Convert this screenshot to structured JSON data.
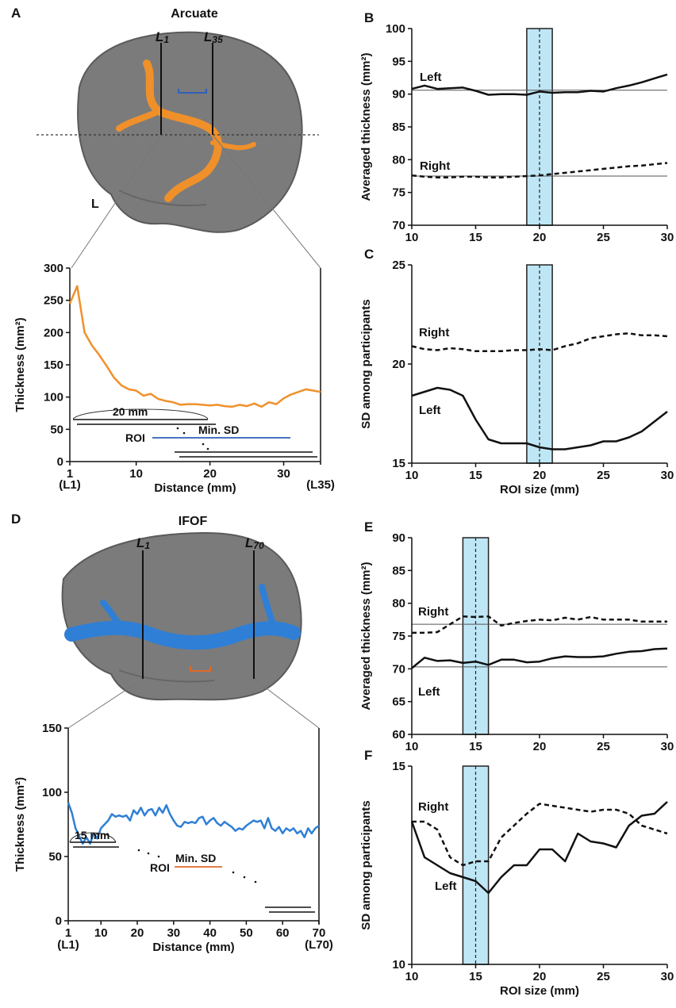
{
  "colors": {
    "arcuate": "#f0902a",
    "ifof": "#2f7fd6",
    "band": "#bfe6f5",
    "brain": "#7b7b7b",
    "roi_arcuate": "#2f5fb8",
    "roi_ifof": "#e0692a"
  },
  "panels": {
    "A": {
      "letter": "A",
      "title": "Arcuate",
      "line_left": "L",
      "line_left_sub": "1",
      "line_right": "L",
      "line_right_sub": "35",
      "hemisphere": "L"
    },
    "D": {
      "letter": "D",
      "title": "IFOF",
      "line_left": "L",
      "line_left_sub": "1",
      "line_right": "L",
      "line_right_sub": "70"
    }
  },
  "chart_data": [
    {
      "id": "A-profile",
      "type": "line",
      "ylabel": "Thickness (mm²)",
      "xlabel": "Distance (mm)",
      "xlim": [
        1,
        35
      ],
      "ylim": [
        0,
        300
      ],
      "xticks": [
        1,
        10,
        20,
        30
      ],
      "yticks": [
        0,
        50,
        100,
        150,
        200,
        250,
        300
      ],
      "x_end_left": "(L1)",
      "x_end_right": "(L35)",
      "x": [
        1,
        2,
        3,
        4,
        5,
        6,
        7,
        8,
        9,
        10,
        11,
        12,
        13,
        14,
        15,
        16,
        17,
        18,
        19,
        20,
        21,
        22,
        23,
        24,
        25,
        26,
        27,
        28,
        29,
        30,
        31,
        32,
        33,
        34,
        35
      ],
      "series": [
        {
          "values": [
            245,
            272,
            200,
            180,
            165,
            148,
            130,
            118,
            112,
            110,
            102,
            105,
            97,
            94,
            92,
            88,
            89,
            89,
            88,
            87,
            88,
            86,
            85,
            88,
            86,
            90,
            85,
            92,
            89,
            98,
            104,
            108,
            112,
            110,
            108
          ]
        }
      ],
      "annotations": {
        "window": "20 mm",
        "roi": "ROI",
        "min_sd": "Min. SD"
      }
    },
    {
      "id": "B",
      "letter": "B",
      "type": "line",
      "ylabel": "Averaged thickness (mm²)",
      "xlim": [
        10,
        30
      ],
      "ylim": [
        70,
        100
      ],
      "xticks": [
        10,
        15,
        20,
        25,
        30
      ],
      "yticks": [
        70,
        75,
        80,
        85,
        90,
        95,
        100
      ],
      "x": [
        10,
        11,
        12,
        13,
        14,
        15,
        16,
        17,
        18,
        19,
        20,
        21,
        22,
        23,
        24,
        25,
        26,
        27,
        28,
        29,
        30
      ],
      "series": [
        {
          "name": "Left",
          "style": "solid",
          "values": [
            90.8,
            91.3,
            90.8,
            90.9,
            91.0,
            90.5,
            89.9,
            90.0,
            90.0,
            89.9,
            90.4,
            90.2,
            90.3,
            90.3,
            90.5,
            90.4,
            90.9,
            91.3,
            91.8,
            92.4,
            93.0
          ]
        },
        {
          "name": "Right",
          "style": "dashed",
          "values": [
            77.6,
            77.4,
            77.3,
            77.3,
            77.4,
            77.4,
            77.3,
            77.3,
            77.4,
            77.5,
            77.6,
            77.8,
            78.0,
            78.2,
            78.4,
            78.6,
            78.8,
            79.0,
            79.1,
            79.3,
            79.5
          ]
        }
      ],
      "reference_lines": [
        90.6,
        77.5
      ],
      "band": [
        19,
        21
      ],
      "marker_x": 20
    },
    {
      "id": "C",
      "letter": "C",
      "type": "line",
      "ylabel": "SD among participants",
      "xlabel": "ROI size (mm)",
      "xlim": [
        10,
        30
      ],
      "ylim": [
        15,
        25
      ],
      "xticks": [
        10,
        15,
        20,
        25,
        30
      ],
      "yticks": [
        15,
        20,
        25
      ],
      "x": [
        10,
        11,
        12,
        13,
        14,
        15,
        16,
        17,
        18,
        19,
        20,
        21,
        22,
        23,
        24,
        25,
        26,
        27,
        28,
        29,
        30
      ],
      "series": [
        {
          "name": "Right",
          "style": "dashed",
          "values": [
            20.9,
            20.75,
            20.7,
            20.8,
            20.75,
            20.65,
            20.65,
            20.65,
            20.7,
            20.7,
            20.75,
            20.7,
            20.9,
            21.05,
            21.3,
            21.4,
            21.5,
            21.55,
            21.45,
            21.45,
            21.4
          ]
        },
        {
          "name": "Left",
          "style": "solid",
          "values": [
            18.4,
            18.6,
            18.8,
            18.7,
            18.4,
            17.2,
            16.2,
            16.0,
            16.0,
            16.0,
            15.8,
            15.7,
            15.7,
            15.8,
            15.9,
            16.1,
            16.1,
            16.3,
            16.6,
            17.1,
            17.6
          ]
        }
      ],
      "band": [
        19,
        21
      ],
      "marker_x": 20
    },
    {
      "id": "D-profile",
      "type": "line",
      "ylabel": "Thickness (mm²)",
      "xlabel": "Distance (mm)",
      "xlim": [
        1,
        70
      ],
      "ylim": [
        0,
        150
      ],
      "xticks": [
        1,
        10,
        20,
        30,
        40,
        50,
        60,
        70
      ],
      "yticks": [
        0,
        50,
        100,
        150
      ],
      "x_end_left": "(L1)",
      "x_end_right": "(L70)",
      "x": [
        1,
        2,
        3,
        4,
        5,
        6,
        7,
        8,
        9,
        10,
        11,
        12,
        13,
        14,
        15,
        16,
        17,
        18,
        19,
        20,
        21,
        22,
        23,
        24,
        25,
        26,
        27,
        28,
        29,
        30,
        31,
        32,
        33,
        34,
        35,
        36,
        37,
        38,
        39,
        40,
        41,
        42,
        43,
        44,
        45,
        46,
        47,
        48,
        49,
        50,
        51,
        52,
        53,
        54,
        55,
        56,
        57,
        58,
        59,
        60,
        61,
        62,
        63,
        64,
        65,
        66,
        67,
        68,
        69,
        70
      ],
      "series": [
        {
          "values": [
            92,
            84,
            72,
            66,
            60,
            65,
            60,
            68,
            64,
            72,
            75,
            78,
            83,
            81,
            82,
            81,
            82,
            78,
            86,
            83,
            88,
            82,
            86,
            87,
            82,
            88,
            84,
            90,
            83,
            78,
            74,
            73,
            77,
            76,
            77,
            76,
            80,
            81,
            75,
            78,
            80,
            76,
            74,
            77,
            75,
            73,
            70,
            72,
            71,
            74,
            76,
            78,
            77,
            78,
            72,
            80,
            72,
            70,
            73,
            68,
            72,
            70,
            72,
            68,
            70,
            65,
            72,
            68,
            72,
            74
          ]
        }
      ],
      "annotations": {
        "window": "15 mm",
        "roi": "ROI",
        "min_sd": "Min. SD"
      }
    },
    {
      "id": "E",
      "letter": "E",
      "type": "line",
      "ylabel": "Averaged thickness (mm²)",
      "xlim": [
        10,
        30
      ],
      "ylim": [
        60,
        90
      ],
      "xticks": [
        10,
        15,
        20,
        25,
        30
      ],
      "yticks": [
        60,
        65,
        70,
        75,
        80,
        85,
        90
      ],
      "x": [
        10,
        11,
        12,
        13,
        14,
        15,
        16,
        17,
        18,
        19,
        20,
        21,
        22,
        23,
        24,
        25,
        26,
        27,
        28,
        29,
        30
      ],
      "series": [
        {
          "name": "Right",
          "style": "dashed",
          "values": [
            75.5,
            75.5,
            75.6,
            76.8,
            78.0,
            77.9,
            78.0,
            76.6,
            77.0,
            77.3,
            77.5,
            77.4,
            77.8,
            77.5,
            77.9,
            77.5,
            77.5,
            77.5,
            77.2,
            77.2,
            77.2
          ]
        },
        {
          "name": "Left",
          "style": "solid",
          "values": [
            70.1,
            71.7,
            71.2,
            71.3,
            70.9,
            71.1,
            70.6,
            71.4,
            71.4,
            71.0,
            71.1,
            71.6,
            71.9,
            71.8,
            71.8,
            71.9,
            72.3,
            72.6,
            72.7,
            73.0,
            73.1
          ]
        }
      ],
      "reference_lines": [
        76.8,
        70.3
      ],
      "band": [
        14,
        16
      ],
      "marker_x": 15
    },
    {
      "id": "F",
      "letter": "F",
      "type": "line",
      "ylabel": "SD among participants",
      "xlabel": "ROI size (mm)",
      "xlim": [
        10,
        30
      ],
      "ylim": [
        10,
        15
      ],
      "xticks": [
        10,
        15,
        20,
        25,
        30
      ],
      "yticks": [
        10,
        15
      ],
      "x": [
        10,
        11,
        12,
        13,
        14,
        15,
        16,
        17,
        18,
        19,
        20,
        21,
        22,
        23,
        24,
        25,
        26,
        27,
        28,
        29,
        30
      ],
      "series": [
        {
          "name": "Right",
          "style": "dashed",
          "values": [
            13.6,
            13.6,
            13.4,
            12.7,
            12.5,
            12.6,
            12.6,
            13.2,
            13.5,
            13.8,
            14.05,
            14.0,
            13.95,
            13.9,
            13.85,
            13.9,
            13.9,
            13.8,
            13.5,
            13.4,
            13.3
          ]
        },
        {
          "name": "Left",
          "style": "solid",
          "values": [
            13.6,
            12.7,
            12.5,
            12.3,
            12.2,
            12.1,
            11.8,
            12.2,
            12.5,
            12.5,
            12.9,
            12.9,
            12.6,
            13.3,
            13.1,
            13.05,
            12.95,
            13.5,
            13.75,
            13.8,
            14.1
          ]
        }
      ],
      "band": [
        14,
        16
      ],
      "marker_x": 15
    }
  ]
}
